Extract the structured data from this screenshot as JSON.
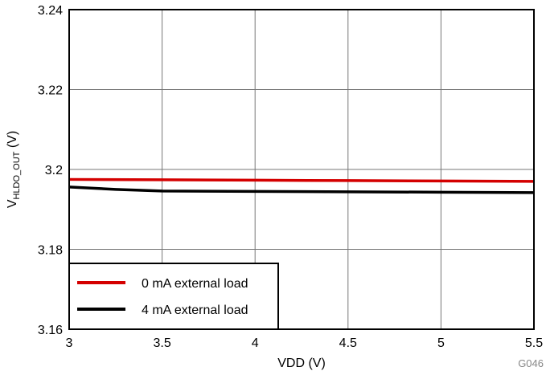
{
  "chart_data": {
    "type": "line",
    "xlabel": "VDD (V)",
    "ylabel_main": "V",
    "ylabel_sub": "HLDO_OUT",
    "ylabel_unit": " (V)",
    "xlim": [
      3,
      5.5
    ],
    "ylim": [
      3.16,
      3.24
    ],
    "xticks": [
      3,
      3.5,
      4,
      4.5,
      5,
      5.5
    ],
    "xtick_labels": [
      "3",
      "3.5",
      "4",
      "4.5",
      "5",
      "5.5"
    ],
    "yticks": [
      3.16,
      3.18,
      3.2,
      3.22,
      3.24
    ],
    "ytick_labels": [
      "3.16",
      "3.18",
      "3.2",
      "3.22",
      "3.24"
    ],
    "grid": true,
    "legend_placement": "bottom-left",
    "annotation": "G046",
    "series": [
      {
        "name": "0 mA external load",
        "color": "#d40000",
        "x": [
          3,
          3.5,
          4,
          4.5,
          5,
          5.5
        ],
        "y": [
          3.1975,
          3.1974,
          3.1973,
          3.1972,
          3.1971,
          3.197
        ]
      },
      {
        "name": "4 mA external load",
        "color": "#000000",
        "x": [
          3,
          3.25,
          3.5,
          4,
          4.5,
          5,
          5.5
        ],
        "y": [
          3.1956,
          3.195,
          3.1946,
          3.1945,
          3.1944,
          3.1943,
          3.1942
        ]
      }
    ]
  }
}
